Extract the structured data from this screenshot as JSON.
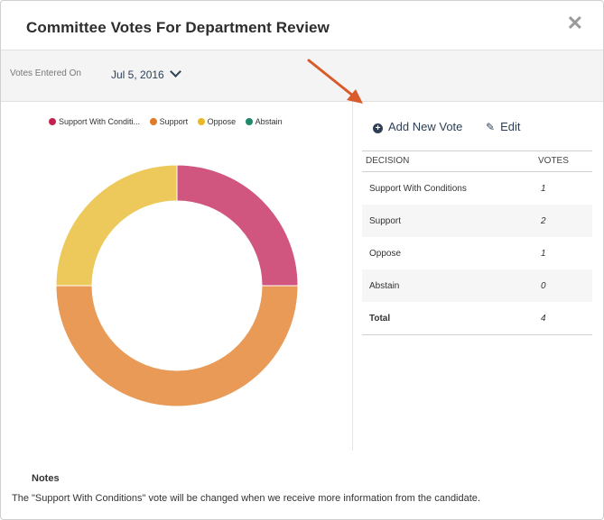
{
  "modal": {
    "title": "Committee Votes For Department Review",
    "close_icon": "close-icon"
  },
  "vote_entry": {
    "label": "Votes Entered On",
    "date": "Jul 5, 2016"
  },
  "legend": [
    {
      "label": "Support With Conditi...",
      "color": "#c1224e"
    },
    {
      "label": "Support",
      "color": "#e07b27"
    },
    {
      "label": "Oppose",
      "color": "#e9b824"
    },
    {
      "label": "Abstain",
      "color": "#1f8a6b"
    }
  ],
  "chart_data": {
    "type": "pie",
    "categories": [
      "Support With Conditions",
      "Support",
      "Oppose",
      "Abstain"
    ],
    "values": [
      1,
      2,
      1,
      0
    ],
    "colors": [
      "#d0567f",
      "#e89a56",
      "#ecc95a",
      "#1f8a6b"
    ]
  },
  "actions": {
    "add": "Add New Vote",
    "edit": "Edit"
  },
  "table": {
    "headers": [
      "DECISION",
      "VOTES"
    ],
    "rows": [
      {
        "decision": "Support With Conditions",
        "votes": "1"
      },
      {
        "decision": "Support",
        "votes": "2"
      },
      {
        "decision": "Oppose",
        "votes": "1"
      },
      {
        "decision": "Abstain",
        "votes": "0"
      }
    ],
    "total_label": "Total",
    "total_value": "4"
  },
  "notes": {
    "title": "Notes",
    "text": "The \"Support With Conditions\" vote will be changed when we receive more information from the candidate."
  },
  "annotation_arrow_color": "#d95b2b"
}
